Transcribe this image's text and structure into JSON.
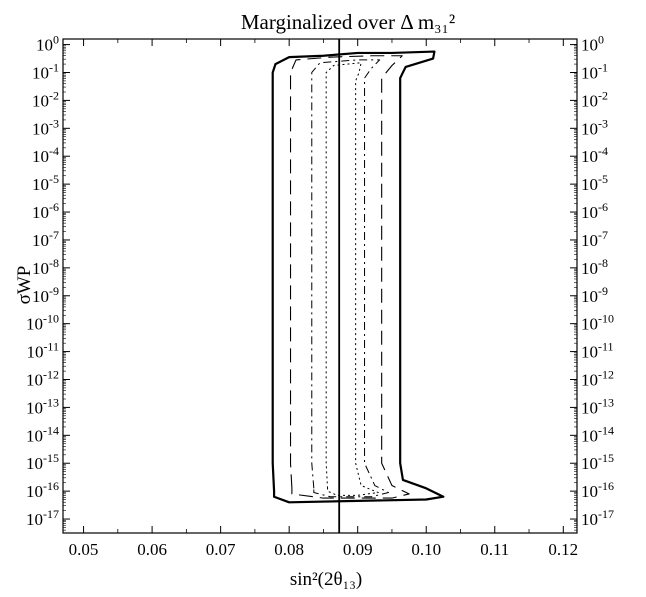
{
  "chart_data": {
    "type": "line",
    "title": "Marginalized over Δ m₃₁²",
    "xlabel": "sin²(2θ₁₃)",
    "ylabel": "σWP",
    "x_scale": "linear",
    "y_scale": "log",
    "xlim": [
      0.047,
      0.122
    ],
    "ylim_exponent": [
      -17.5,
      0.2
    ],
    "x_ticks": [
      "0.05",
      "0.06",
      "0.07",
      "0.08",
      "0.09",
      "0.10",
      "0.11",
      "0.12"
    ],
    "y_tick_exponents": [
      0,
      -1,
      -2,
      -3,
      -4,
      -5,
      -6,
      -7,
      -8,
      -9,
      -10,
      -11,
      -12,
      -13,
      -14,
      -15,
      -16,
      -17
    ],
    "true_value_line": {
      "x": 0.0873
    },
    "grid": false,
    "legend": "none",
    "series": [
      {
        "style": "solid-thick",
        "points": [
          [
            0.0778,
            -16.0
          ],
          [
            0.0776,
            -15.0
          ],
          [
            0.0776,
            -5.0
          ],
          [
            0.0776,
            -1.0
          ],
          [
            0.078,
            -0.7
          ],
          [
            0.08,
            -0.45
          ],
          [
            0.085,
            -0.4
          ],
          [
            0.09,
            -0.3
          ],
          [
            0.095,
            -0.3
          ],
          [
            0.1012,
            -0.25
          ],
          [
            0.101,
            -0.5
          ],
          [
            0.097,
            -0.8
          ],
          [
            0.0962,
            -1.2
          ],
          [
            0.0962,
            -5.0
          ],
          [
            0.0962,
            -15.0
          ],
          [
            0.0966,
            -15.6
          ],
          [
            0.1,
            -15.9
          ],
          [
            0.1025,
            -16.2
          ],
          [
            0.1,
            -16.3
          ],
          [
            0.09,
            -16.35
          ],
          [
            0.08,
            -16.4
          ],
          [
            0.0778,
            -16.2
          ],
          [
            0.0778,
            -16.0
          ]
        ]
      },
      {
        "style": "long-dash",
        "points": [
          [
            0.0804,
            -15.9
          ],
          [
            0.0802,
            -15.0
          ],
          [
            0.0802,
            -1.0
          ],
          [
            0.081,
            -0.55
          ],
          [
            0.086,
            -0.45
          ],
          [
            0.092,
            -0.4
          ],
          [
            0.0965,
            -0.4
          ],
          [
            0.095,
            -0.75
          ],
          [
            0.0935,
            -1.2
          ],
          [
            0.0935,
            -15.0
          ],
          [
            0.095,
            -15.8
          ],
          [
            0.0975,
            -16.1
          ],
          [
            0.095,
            -16.25
          ],
          [
            0.085,
            -16.25
          ],
          [
            0.0804,
            -16.1
          ],
          [
            0.0804,
            -15.9
          ]
        ]
      },
      {
        "style": "dash-dot",
        "points": [
          [
            0.0836,
            -15.9
          ],
          [
            0.0833,
            -15.0
          ],
          [
            0.0833,
            -1.0
          ],
          [
            0.0845,
            -0.65
          ],
          [
            0.09,
            -0.55
          ],
          [
            0.0932,
            -0.55
          ],
          [
            0.092,
            -0.85
          ],
          [
            0.091,
            -1.2
          ],
          [
            0.091,
            -15.0
          ],
          [
            0.0925,
            -15.8
          ],
          [
            0.0945,
            -16.05
          ],
          [
            0.092,
            -16.2
          ],
          [
            0.086,
            -16.2
          ],
          [
            0.0836,
            -16.05
          ],
          [
            0.0836,
            -15.9
          ]
        ]
      },
      {
        "style": "dotted",
        "points": [
          [
            0.0856,
            -15.9
          ],
          [
            0.0854,
            -15.0
          ],
          [
            0.0854,
            -1.0
          ],
          [
            0.0865,
            -0.75
          ],
          [
            0.0905,
            -0.65
          ],
          [
            0.0902,
            -1.0
          ],
          [
            0.0897,
            -1.3
          ],
          [
            0.0897,
            -15.0
          ],
          [
            0.0905,
            -15.8
          ],
          [
            0.093,
            -16.05
          ],
          [
            0.09,
            -16.15
          ],
          [
            0.087,
            -16.15
          ],
          [
            0.0856,
            -16.0
          ],
          [
            0.0856,
            -15.9
          ]
        ]
      }
    ]
  }
}
